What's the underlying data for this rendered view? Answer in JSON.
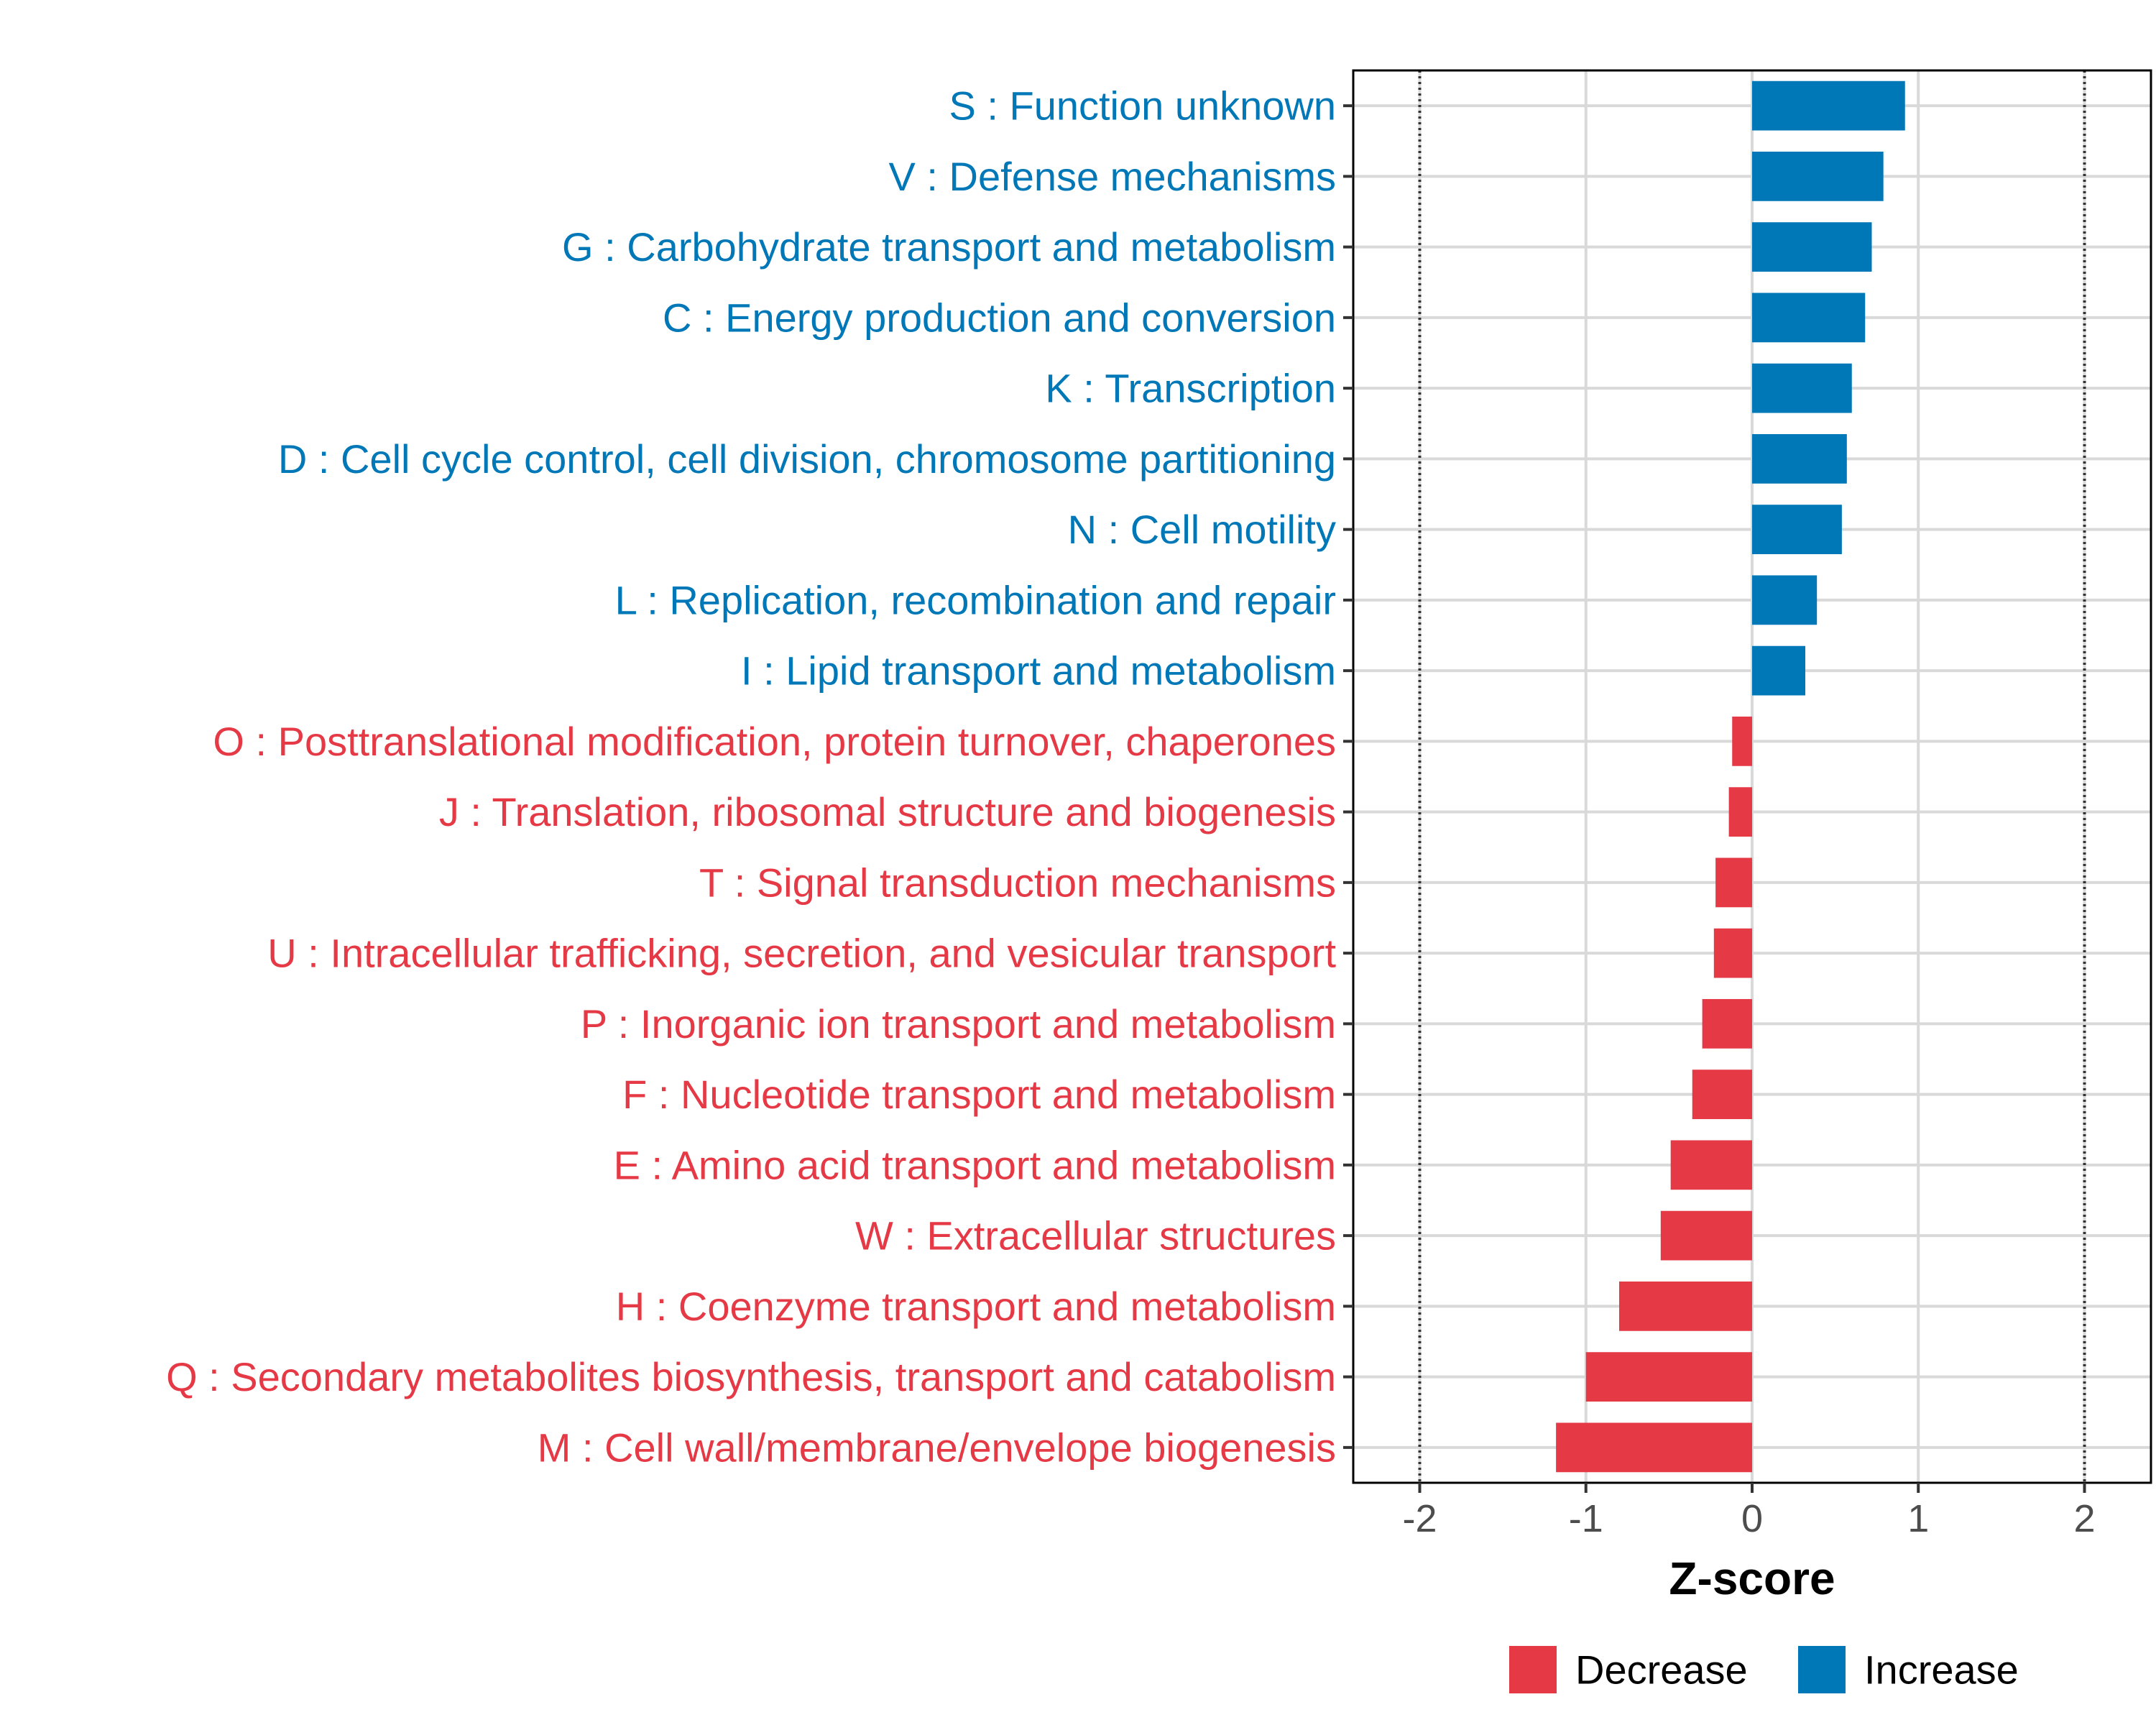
{
  "chart_data": {
    "type": "bar",
    "orientation": "horizontal",
    "title": "",
    "xlabel": "Z-score",
    "ylabel": "",
    "xlim": [
      -2.4,
      2.4
    ],
    "xticks": [
      -2,
      -1,
      0,
      1,
      2
    ],
    "xtick_labels": [
      "-2",
      "-1",
      "0",
      "1",
      "2"
    ],
    "reference_lines": [
      -2,
      2
    ],
    "grid": true,
    "categories": [
      "S : Function unknown",
      "V : Defense mechanisms",
      "G : Carbohydrate transport and metabolism",
      "C : Energy production and conversion",
      "K : Transcription",
      "D : Cell cycle control, cell division, chromosome partitioning",
      "N : Cell motility",
      "L : Replication, recombination and repair",
      "I : Lipid transport and metabolism",
      "O : Posttranslational modification, protein turnover, chaperones",
      "J : Translation, ribosomal structure and biogenesis",
      "T : Signal transduction mechanisms",
      "U : Intracellular trafficking, secretion, and vesicular transport",
      "P : Inorganic ion transport and metabolism",
      "F : Nucleotide transport and metabolism",
      "E : Amino acid transport and metabolism",
      "W : Extracellular structures",
      "H : Coenzyme transport and metabolism",
      "Q : Secondary metabolites biosynthesis, transport and catabolism",
      "M : Cell wall/membrane/envelope biogenesis"
    ],
    "values": [
      0.92,
      0.79,
      0.72,
      0.68,
      0.6,
      0.57,
      0.54,
      0.39,
      0.32,
      -0.12,
      -0.14,
      -0.22,
      -0.23,
      -0.3,
      -0.36,
      -0.49,
      -0.55,
      -0.8,
      -1.0,
      -1.18
    ],
    "groups": [
      "Increase",
      "Increase",
      "Increase",
      "Increase",
      "Increase",
      "Increase",
      "Increase",
      "Increase",
      "Increase",
      "Decrease",
      "Decrease",
      "Decrease",
      "Decrease",
      "Decrease",
      "Decrease",
      "Decrease",
      "Decrease",
      "Decrease",
      "Decrease",
      "Decrease"
    ],
    "legend": {
      "position": "bottom",
      "items": [
        {
          "label": "Decrease",
          "color": "#E63946"
        },
        {
          "label": "Increase",
          "color": "#0077B6"
        }
      ]
    },
    "colors": {
      "Increase": "#0077B6",
      "Decrease": "#E63946"
    }
  }
}
